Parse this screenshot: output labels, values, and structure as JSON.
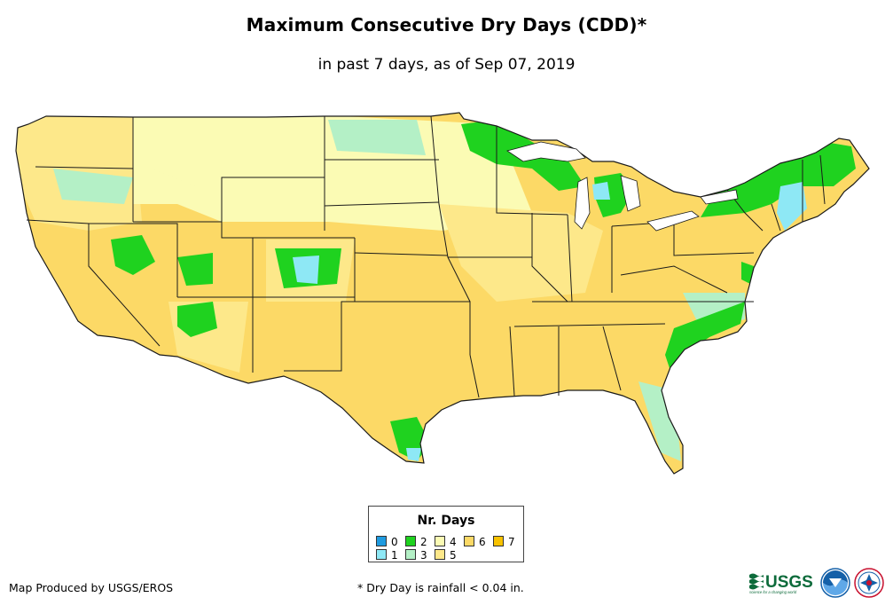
{
  "title": "Maximum Consecutive Dry Days (CDD)*",
  "subtitle": "in past 7 days, as of Sep 07, 2019",
  "legend": {
    "title": "Nr. Days",
    "items": [
      {
        "label": "0",
        "color": "#1f9be0"
      },
      {
        "label": "1",
        "color": "#8ee8f5"
      },
      {
        "label": "2",
        "color": "#1fd21f"
      },
      {
        "label": "3",
        "color": "#b4f0c6"
      },
      {
        "label": "4",
        "color": "#fbfbb4"
      },
      {
        "label": "5",
        "color": "#fde88a"
      },
      {
        "label": "6",
        "color": "#fcd966"
      },
      {
        "label": "7",
        "color": "#f8c200"
      }
    ]
  },
  "credit": "Map Produced by USGS/EROS",
  "footnote": "* Dry Day is rainfall < 0.04 in.",
  "logos": {
    "usgs": {
      "wordmark": "USGS",
      "tagline": "science for a changing world",
      "color": "#0d6b3b"
    },
    "noaa": {
      "wordmark": "NOAA",
      "color": "#1460a8"
    },
    "nws": {
      "color": "#1460a8"
    }
  },
  "map": {
    "colors": {
      "land": "#fcd966",
      "border": "#1a1a1a",
      "water": "#ffffff"
    },
    "regions": [
      {
        "name": "upper-midwest-green",
        "value": 2
      },
      {
        "name": "northeast-green",
        "value": 2
      },
      {
        "name": "carolinas-green",
        "value": 2
      },
      {
        "name": "nevada-green",
        "value": 2
      },
      {
        "name": "arizona-green",
        "value": 2
      },
      {
        "name": "south-texas-green",
        "value": 2
      },
      {
        "name": "colorado-cyan",
        "value": 1
      },
      {
        "name": "new-england-cyan",
        "value": 1
      },
      {
        "name": "northern-plains-light",
        "value": 4
      },
      {
        "name": "midwest-light",
        "value": 5
      },
      {
        "name": "southeast-orange",
        "value": 6
      }
    ]
  }
}
